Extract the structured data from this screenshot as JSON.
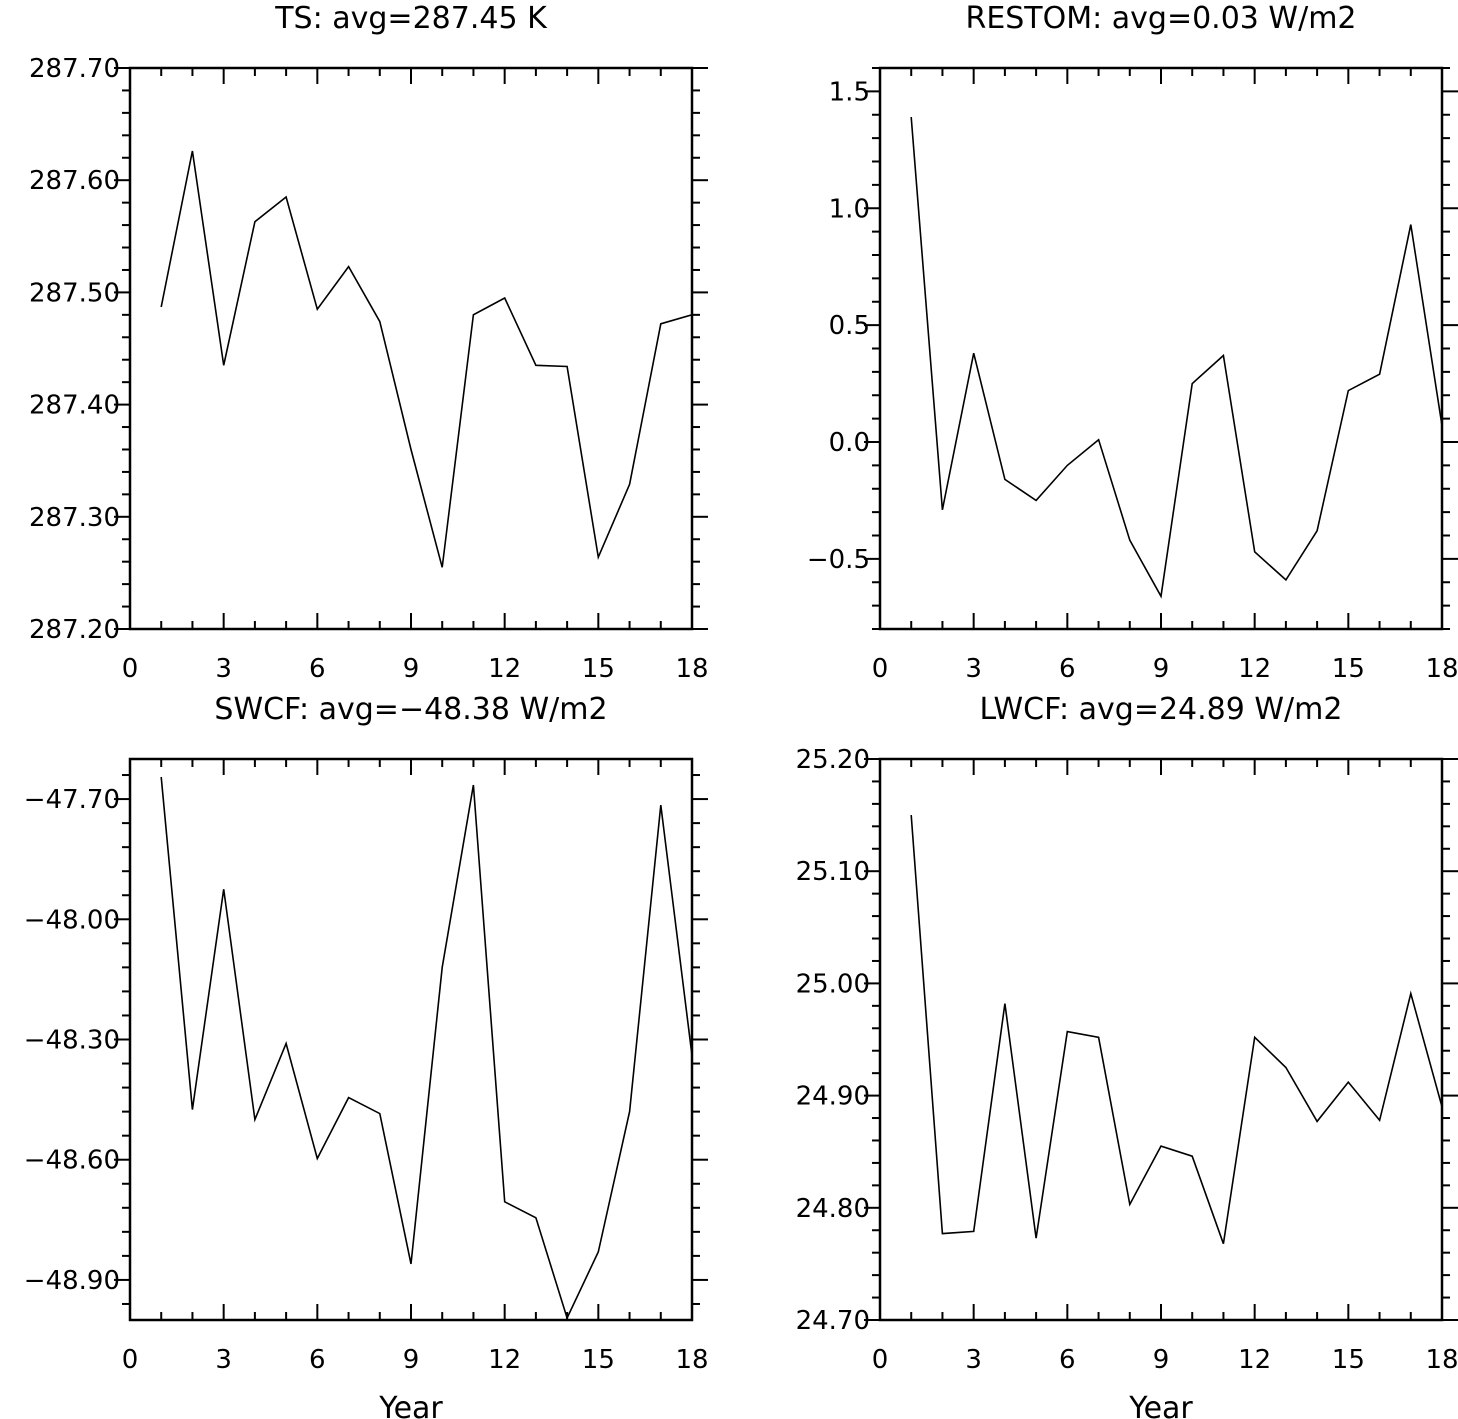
{
  "chart_data": [
    {
      "type": "line",
      "title": "TS: avg=287.45 K",
      "xlabel": "",
      "ylabel": "",
      "xlim": [
        0,
        18
      ],
      "ylim": [
        287.2,
        287.7
      ],
      "xticks": [
        "0",
        "3",
        "6",
        "9",
        "12",
        "15",
        "18"
      ],
      "yticks": [
        "287.20",
        "287.30",
        "287.40",
        "287.50",
        "287.60",
        "287.70"
      ],
      "grid": false,
      "series": [
        {
          "x": [
            1,
            2,
            3,
            4,
            5,
            6,
            7,
            8,
            9,
            10,
            11,
            12,
            13,
            14,
            15,
            16,
            17,
            18
          ],
          "values": [
            287.487,
            287.626,
            287.435,
            287.563,
            287.585,
            287.485,
            287.523,
            287.474,
            287.36,
            287.255,
            287.48,
            287.495,
            287.435,
            287.434,
            287.264,
            287.329,
            287.472,
            287.48
          ]
        }
      ]
    },
    {
      "type": "line",
      "title": "RESTOM: avg=0.03 W/m2",
      "xlabel": "",
      "ylabel": "",
      "xlim": [
        0,
        18
      ],
      "ylim": [
        -0.8,
        1.6
      ],
      "xticks": [
        "0",
        "3",
        "6",
        "9",
        "12",
        "15",
        "18"
      ],
      "yticks": [
        "−0.5",
        "0.0",
        "0.5",
        "1.0",
        "1.5"
      ],
      "grid": false,
      "series": [
        {
          "x": [
            1,
            2,
            3,
            4,
            5,
            6,
            7,
            8,
            9,
            10,
            11,
            12,
            13,
            14,
            15,
            16,
            17,
            18
          ],
          "values": [
            1.39,
            -0.29,
            0.38,
            -0.16,
            -0.25,
            -0.1,
            0.01,
            -0.42,
            -0.66,
            0.25,
            0.37,
            -0.47,
            -0.59,
            -0.38,
            0.22,
            0.29,
            0.93,
            0.07
          ]
        }
      ]
    },
    {
      "type": "line",
      "title": "SWCF: avg=−48.38 W/m2",
      "xlabel": "Year",
      "ylabel": "",
      "xlim": [
        0,
        18
      ],
      "ylim": [
        -49.0,
        -47.6
      ],
      "xticks": [
        "0",
        "3",
        "6",
        "9",
        "12",
        "15",
        "18"
      ],
      "yticks": [
        "−48.90",
        "−48.60",
        "−48.30",
        "−48.00",
        "−47.70"
      ],
      "grid": false,
      "series": [
        {
          "x": [
            1,
            2,
            3,
            4,
            5,
            6,
            7,
            8,
            9,
            10,
            11,
            12,
            13,
            14,
            15,
            16,
            17,
            18
          ],
          "values": [
            -47.645,
            -48.475,
            -47.925,
            -48.5,
            -48.31,
            -48.597,
            -48.445,
            -48.485,
            -48.86,
            -48.12,
            -47.665,
            -48.705,
            -48.745,
            -48.995,
            -48.83,
            -48.48,
            -47.715,
            -48.34
          ]
        }
      ]
    },
    {
      "type": "line",
      "title": "LWCF: avg=24.89 W/m2",
      "xlabel": "Year",
      "ylabel": "",
      "xlim": [
        0,
        18
      ],
      "ylim": [
        24.7,
        25.2
      ],
      "xticks": [
        "0",
        "3",
        "6",
        "9",
        "12",
        "15",
        "18"
      ],
      "yticks": [
        "24.70",
        "24.80",
        "24.90",
        "25.00",
        "25.10",
        "25.20"
      ],
      "grid": false,
      "series": [
        {
          "x": [
            1,
            2,
            3,
            4,
            5,
            6,
            7,
            8,
            9,
            10,
            11,
            12,
            13,
            14,
            15,
            16,
            17,
            18
          ],
          "values": [
            25.15,
            24.777,
            24.779,
            24.982,
            24.773,
            24.957,
            24.952,
            24.803,
            24.855,
            24.846,
            24.768,
            24.952,
            24.925,
            24.877,
            24.912,
            24.878,
            24.991,
            24.89
          ]
        }
      ]
    }
  ]
}
